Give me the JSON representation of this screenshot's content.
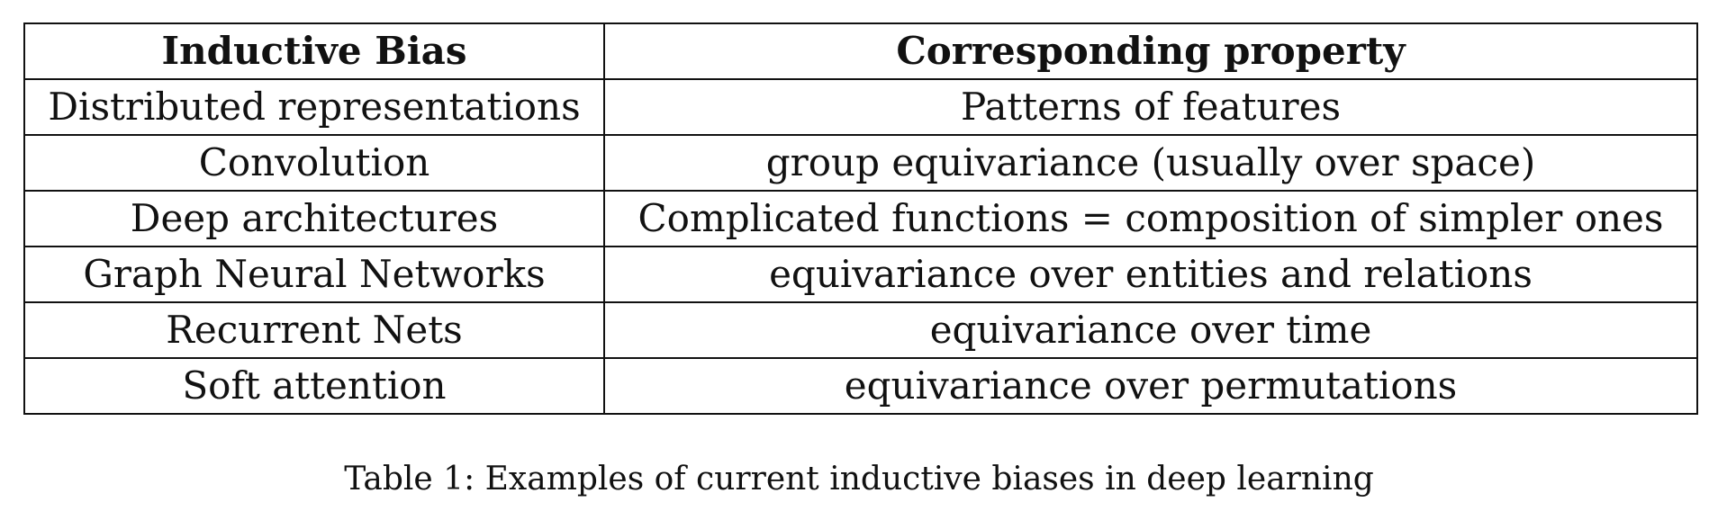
{
  "table": {
    "headers": [
      "Inductive Bias",
      "Corresponding property"
    ],
    "rows": [
      [
        "Distributed representations",
        "Patterns of features"
      ],
      [
        "Convolution",
        "group equivariance (usually over space)"
      ],
      [
        "Deep architectures",
        "Complicated functions = composition of simpler ones"
      ],
      [
        "Graph Neural Networks",
        "equivariance over entities and relations"
      ],
      [
        "Recurrent Nets",
        "equivariance over time"
      ],
      [
        "Soft attention",
        "equivariance over permutations"
      ]
    ]
  },
  "caption": "Table 1: Examples of current inductive biases in deep learning"
}
